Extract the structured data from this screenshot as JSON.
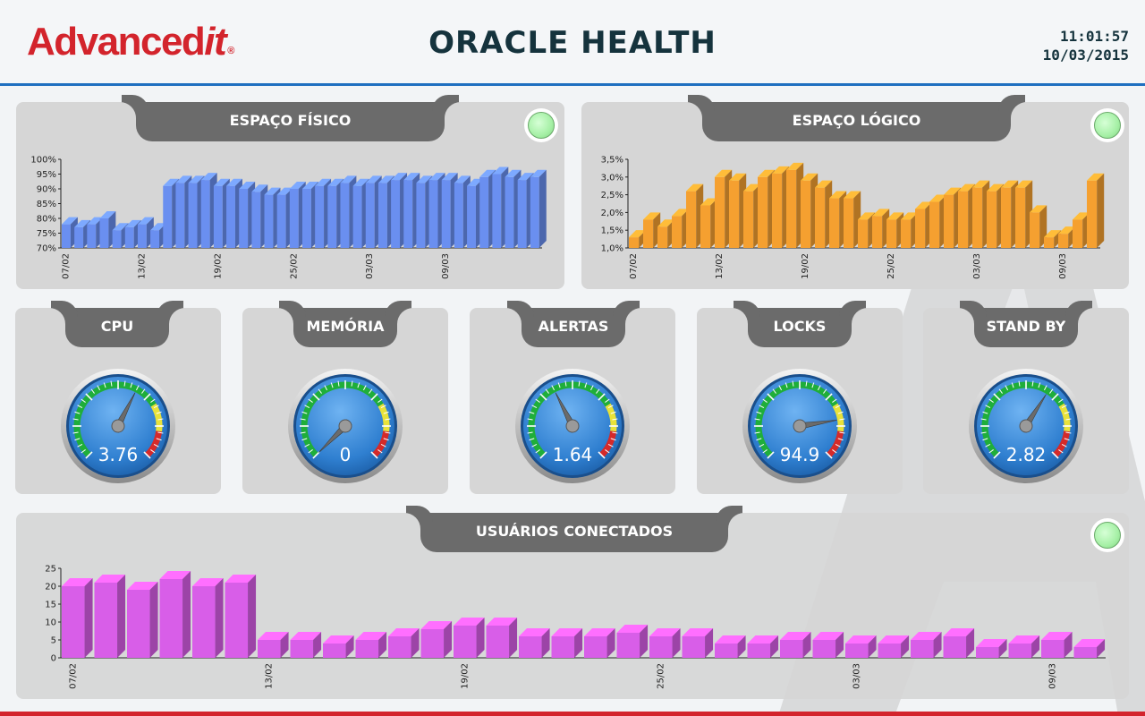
{
  "header": {
    "logo_main": "Advanced",
    "logo_it": "it",
    "logo_reg": "®",
    "title": "ORACLE HEALTH",
    "time": "11:01:57",
    "date": "10/03/2015"
  },
  "colors": {
    "accent": "#1f6fc0",
    "brand": "#d3242c",
    "blue_bars": "#6a8ff0",
    "orange_bars": "#f5a030",
    "magenta_bars": "#d85ee8",
    "status_ok": "#a6f0a6"
  },
  "panels": {
    "espaco_fisico": {
      "title": "ESPAÇO FÍSICO",
      "status_icon": "status-led-green"
    },
    "espaco_logico": {
      "title": "ESPAÇO LÓGICO",
      "status_icon": "status-led-green"
    },
    "usuarios": {
      "title": "USUÁRIOS CONECTADOS",
      "status_icon": "status-led-green"
    }
  },
  "gauges": [
    {
      "title": "CPU",
      "value_label": "3.76",
      "fraction": 0.6
    },
    {
      "title": "MEMÓRIA",
      "value_label": "0",
      "fraction": 0.0
    },
    {
      "title": "ALERTAS",
      "value_label": "1.64",
      "fraction": 0.4
    },
    {
      "title": "LOCKS",
      "value_label": "94.9",
      "fraction": 0.8
    },
    {
      "title": "STAND BY",
      "value_label": "2.82",
      "fraction": 0.62
    }
  ],
  "chart_data": [
    {
      "id": "espaco-fisico",
      "type": "bar",
      "title": "ESPAÇO FÍSICO",
      "ylim": [
        70,
        100
      ],
      "yticks": [
        70,
        75,
        80,
        85,
        90,
        95,
        100
      ],
      "ytick_labels": [
        "70%",
        "75%",
        "80%",
        "85%",
        "90%",
        "95%",
        "100%"
      ],
      "x_labels": [
        {
          "index": 0,
          "label": "07/02"
        },
        {
          "index": 6,
          "label": "13/02"
        },
        {
          "index": 12,
          "label": "19/02"
        },
        {
          "index": 18,
          "label": "25/02"
        },
        {
          "index": 24,
          "label": "03/03"
        },
        {
          "index": 30,
          "label": "09/03"
        }
      ],
      "values": [
        78,
        77,
        78,
        80,
        76,
        77,
        78,
        76,
        91,
        92,
        92,
        93,
        91,
        91,
        90,
        89,
        88,
        88,
        90,
        90,
        91,
        91,
        92,
        91,
        92,
        92,
        93,
        93,
        92,
        93,
        93,
        92,
        91,
        94,
        95,
        94,
        93,
        94
      ],
      "color": "#6a8ff0"
    },
    {
      "id": "espaco-logico",
      "type": "bar",
      "title": "ESPAÇO LÓGICO",
      "ylim": [
        1.0,
        3.5
      ],
      "yticks": [
        1.0,
        1.5,
        2.0,
        2.5,
        3.0,
        3.5
      ],
      "ytick_labels": [
        "1,0%",
        "1,5%",
        "2,0%",
        "2,5%",
        "3,0%",
        "3,5%"
      ],
      "x_labels": [
        {
          "index": 0,
          "label": "07/02"
        },
        {
          "index": 6,
          "label": "13/02"
        },
        {
          "index": 12,
          "label": "19/02"
        },
        {
          "index": 18,
          "label": "25/02"
        },
        {
          "index": 24,
          "label": "03/03"
        },
        {
          "index": 30,
          "label": "09/03"
        }
      ],
      "values": [
        1.3,
        1.8,
        1.6,
        1.9,
        2.6,
        2.2,
        3.0,
        2.9,
        2.6,
        3.0,
        3.1,
        3.2,
        2.9,
        2.7,
        2.4,
        2.4,
        1.8,
        1.9,
        1.8,
        1.8,
        2.1,
        2.3,
        2.5,
        2.6,
        2.7,
        2.6,
        2.7,
        2.7,
        2.0,
        1.3,
        1.4,
        1.8,
        2.9
      ],
      "color": "#f5a030"
    },
    {
      "id": "usuarios-conectados",
      "type": "bar",
      "title": "USUÁRIOS CONECTADOS",
      "ylim": [
        0,
        25
      ],
      "yticks": [
        0,
        5,
        10,
        15,
        20,
        25
      ],
      "ytick_labels": [
        "0",
        "5",
        "10",
        "15",
        "20",
        "25"
      ],
      "x_labels": [
        {
          "index": 0,
          "label": "07/02"
        },
        {
          "index": 6,
          "label": "13/02"
        },
        {
          "index": 12,
          "label": "19/02"
        },
        {
          "index": 18,
          "label": "25/02"
        },
        {
          "index": 24,
          "label": "03/03"
        },
        {
          "index": 30,
          "label": "09/03"
        }
      ],
      "values": [
        20,
        21,
        19,
        22,
        20,
        21,
        5,
        5,
        4,
        5,
        6,
        8,
        9,
        9,
        6,
        6,
        6,
        7,
        6,
        6,
        4,
        4,
        5,
        5,
        4,
        4,
        5,
        6,
        3,
        4,
        5,
        3
      ],
      "color": "#d85ee8"
    }
  ]
}
